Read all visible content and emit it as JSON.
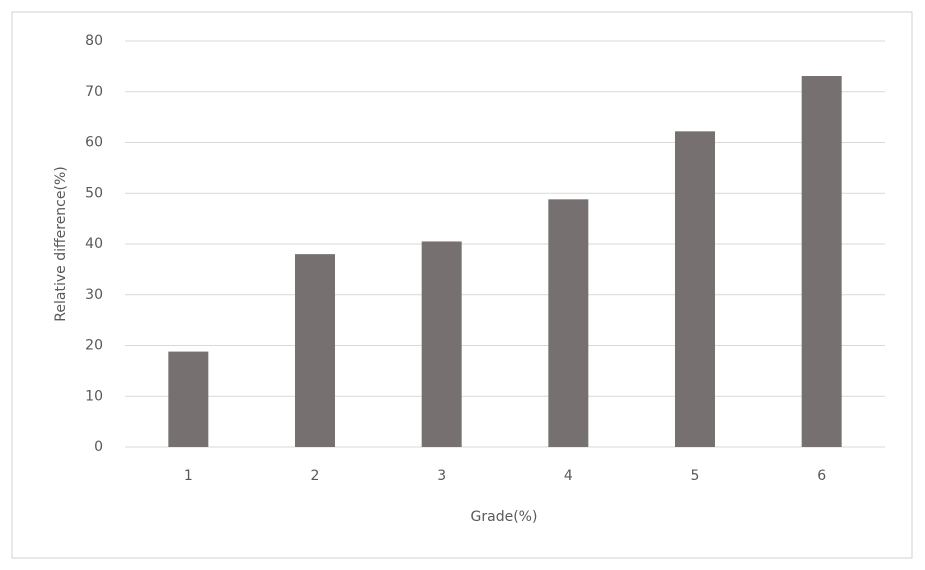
{
  "chart_data": {
    "type": "bar",
    "x_label": "Grade(%)",
    "y_label": "Relative difference(%)",
    "categories": [
      "1",
      "2",
      "3",
      "4",
      "5",
      "6"
    ],
    "values": [
      18.8,
      38,
      40.5,
      48.8,
      62.2,
      73.1
    ],
    "color": "#767070",
    "ylim": [
      0,
      80
    ],
    "yticks": [
      0,
      10,
      20,
      30,
      40,
      50,
      60,
      70,
      80
    ],
    "grid": true
  }
}
